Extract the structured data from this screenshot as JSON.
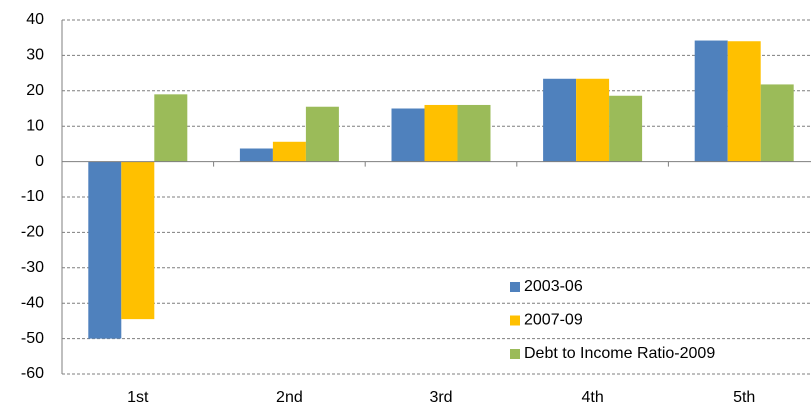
{
  "chart_data": {
    "type": "bar",
    "categories": [
      "1st",
      "2nd",
      "3rd",
      "4th",
      "5th"
    ],
    "series": [
      {
        "name": "2003-06",
        "color": "#4f81bd",
        "values": [
          -50,
          3.7,
          15,
          23.4,
          34.2
        ]
      },
      {
        "name": "2007-09",
        "color": "#ffc000",
        "values": [
          -44.5,
          5.6,
          16,
          23.4,
          34
        ]
      },
      {
        "name": "Debt to Income Ratio-2009",
        "color": "#9bbb59",
        "values": [
          19,
          15.5,
          16,
          18.6,
          21.8
        ]
      }
    ],
    "ylim": [
      -60,
      40
    ],
    "yticks": [
      -60,
      -50,
      -40,
      -30,
      -20,
      -10,
      0,
      10,
      20,
      30,
      40
    ],
    "grid": true,
    "legend": "lower right"
  }
}
